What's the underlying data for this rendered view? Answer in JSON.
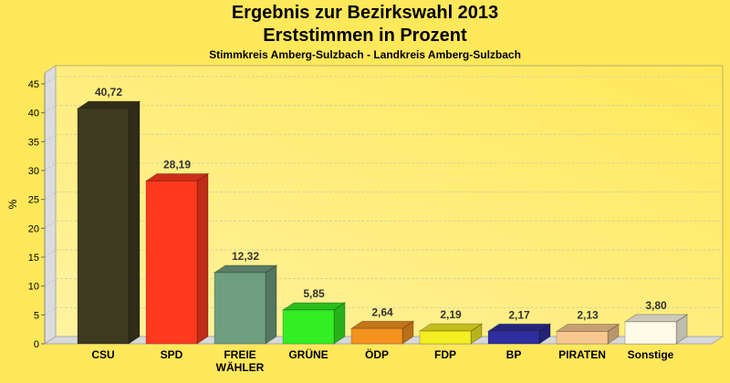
{
  "chart_data": {
    "type": "bar",
    "title": "Ergebnis zur Bezirkswahl 2013",
    "title_line2": "Erststimmen in Prozent",
    "subtitle": "Stimmkreis Amberg-Sulzbach - Landkreis Amberg-Sulzbach",
    "xlabel": "",
    "ylabel": "%",
    "ylim": [
      0,
      45
    ],
    "yticks": [
      0,
      5,
      10,
      15,
      20,
      25,
      30,
      35,
      40,
      45
    ],
    "grid": true,
    "three_d": true,
    "categories": [
      "CSU",
      "SPD",
      "FREIE WÄHLER",
      "GRÜNE",
      "ÖDP",
      "FDP",
      "BP",
      "PIRATEN",
      "Sonstige"
    ],
    "category_lines": [
      [
        "CSU"
      ],
      [
        "SPD"
      ],
      [
        "FREIE",
        "WÄHLER"
      ],
      [
        "GRÜNE"
      ],
      [
        "ÖDP"
      ],
      [
        "FDP"
      ],
      [
        "BP"
      ],
      [
        "PIRATEN"
      ],
      [
        "Sonstige"
      ]
    ],
    "values": [
      40.72,
      28.19,
      12.32,
      5.85,
      2.64,
      2.19,
      2.17,
      2.13,
      3.8
    ],
    "data_labels": [
      "40,72",
      "28,19",
      "12,32",
      "5,85",
      "2,64",
      "2,19",
      "2,17",
      "2,13",
      "3,80"
    ],
    "colors": [
      "#3d3a20",
      "#ff3a1e",
      "#6f9e80",
      "#33ee22",
      "#f5921e",
      "#f5ee22",
      "#2e2e9e",
      "#f8c890",
      "#fffbe8"
    ]
  }
}
